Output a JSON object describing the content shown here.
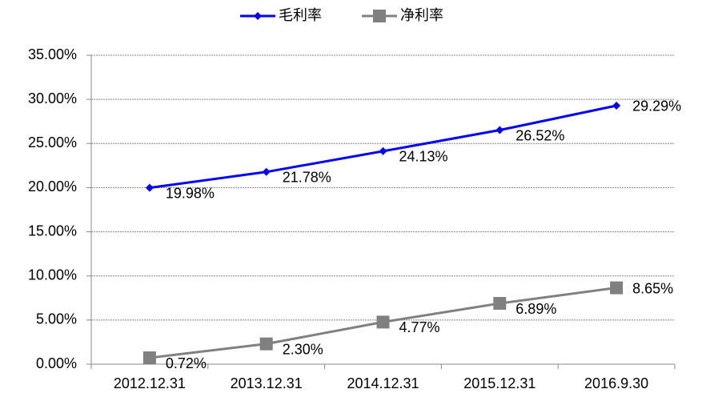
{
  "chart_data": {
    "type": "line",
    "categories": [
      "2012.12.31",
      "2013.12.31",
      "2014.12.31",
      "2015.12.31",
      "2016.9.30"
    ],
    "series": [
      {
        "name": "毛利率",
        "color": "#0000ff",
        "marker": "diamond",
        "values": [
          19.98,
          21.78,
          24.13,
          26.52,
          29.29
        ],
        "value_labels": [
          "19.98%",
          "21.78%",
          "24.13%",
          "26.52%",
          "29.29%"
        ]
      },
      {
        "name": "净利率",
        "color": "#808080",
        "marker": "square",
        "values": [
          0.72,
          2.3,
          4.77,
          6.89,
          8.65
        ],
        "value_labels": [
          "0.72%",
          "2.30%",
          "4.77%",
          "6.89%",
          "8.65%"
        ]
      }
    ],
    "ylim": [
      0,
      35
    ],
    "yticks": [
      {
        "value": 0,
        "label": "0.00%"
      },
      {
        "value": 5,
        "label": "5.00%"
      },
      {
        "value": 10,
        "label": "10.00%"
      },
      {
        "value": 15,
        "label": "15.00%"
      },
      {
        "value": 20,
        "label": "20.00%"
      },
      {
        "value": 25,
        "label": "25.00%"
      },
      {
        "value": 30,
        "label": "30.00%"
      },
      {
        "value": 35,
        "label": "35.00%"
      }
    ],
    "grid": true,
    "legend": "top"
  }
}
